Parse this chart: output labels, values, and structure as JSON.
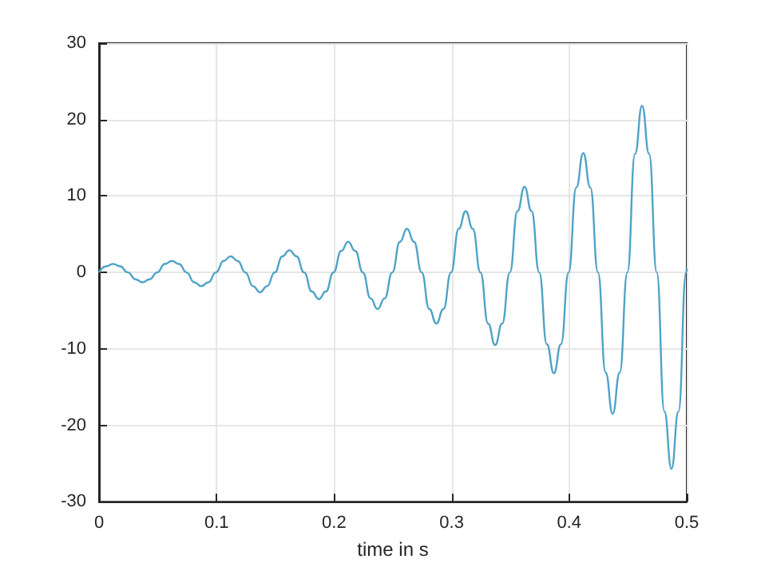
{
  "chart_data": {
    "type": "line",
    "xlabel": "time in s",
    "xlim": [
      0,
      0.5
    ],
    "xticks": [
      0,
      0.1,
      0.2,
      0.3,
      0.4,
      0.5
    ],
    "ylim": [
      -30,
      30
    ],
    "yticks": [
      -30,
      -20,
      -10,
      0,
      10,
      20,
      30
    ],
    "grid": true,
    "marker": "none",
    "line_style": "solid",
    "series": [
      {
        "color": "#4fa3c7",
        "x": [
          0,
          0.006,
          0.012,
          0.018,
          0.0245,
          0.031,
          0.037,
          0.043,
          0.0495,
          0.056,
          0.062,
          0.068,
          0.0745,
          0.081,
          0.087,
          0.093,
          0.0995,
          0.106,
          0.112,
          0.118,
          0.1245,
          0.131,
          0.137,
          0.143,
          0.1495,
          0.156,
          0.162,
          0.168,
          0.1745,
          0.181,
          0.187,
          0.193,
          0.1995,
          0.206,
          0.212,
          0.218,
          0.2245,
          0.231,
          0.237,
          0.243,
          0.2495,
          0.256,
          0.262,
          0.268,
          0.2745,
          0.281,
          0.287,
          0.293,
          0.2995,
          0.306,
          0.312,
          0.318,
          0.3245,
          0.331,
          0.337,
          0.343,
          0.3495,
          0.356,
          0.362,
          0.368,
          0.3745,
          0.381,
          0.387,
          0.393,
          0.3995,
          0.406,
          0.412,
          0.418,
          0.4245,
          0.431,
          0.437,
          0.443,
          0.4495,
          0.456,
          0.462,
          0.468,
          0.4745,
          0.481,
          0.487,
          0.493,
          0.4995,
          0.5
        ],
        "values": [
          0,
          0.8,
          1.1,
          0.8,
          0,
          -0.9,
          -1.3,
          -0.9,
          0,
          1.1,
          1.5,
          1.1,
          0,
          -1.3,
          -1.8,
          -1.3,
          0,
          1.5,
          2.1,
          1.5,
          0,
          -1.8,
          -2.6,
          -1.8,
          0,
          2.1,
          2.9,
          2.1,
          0,
          -2.5,
          -3.5,
          -2.5,
          0,
          2.8,
          4.0,
          2.8,
          0,
          -3.4,
          -4.8,
          -3.4,
          0,
          4.0,
          5.7,
          4.0,
          0,
          -4.8,
          -6.7,
          -4.8,
          0,
          5.7,
          8.0,
          5.7,
          0,
          -6.7,
          -9.5,
          -6.7,
          0,
          8.0,
          11.2,
          8.0,
          0,
          -9.4,
          -13.2,
          -9.4,
          0,
          11.1,
          15.6,
          11.1,
          0,
          -13.1,
          -18.5,
          -13.1,
          0,
          15.5,
          21.8,
          15.5,
          0,
          -18.2,
          -25.7,
          -18.2,
          0,
          0.5
        ]
      }
    ]
  }
}
